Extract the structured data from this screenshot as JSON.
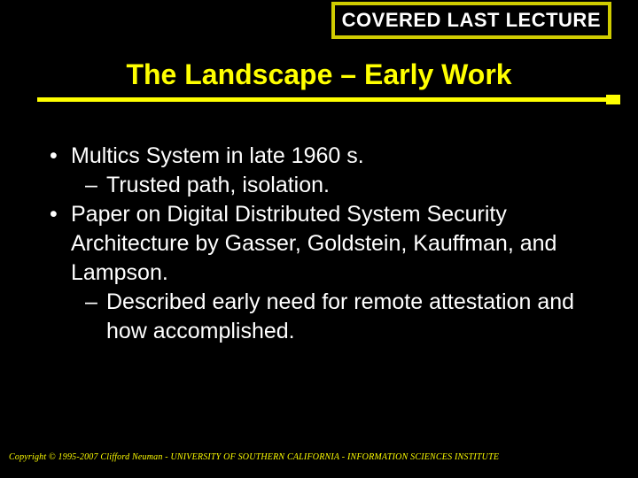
{
  "banner": {
    "text": "COVERED LAST LECTURE"
  },
  "title": "The Landscape – Early Work",
  "bullets": [
    {
      "text": "Multics System in late 1960 s.",
      "subs": [
        {
          "text": "Trusted path, isolation."
        }
      ]
    },
    {
      "text": "Paper on Digital Distributed System Security Architecture by Gasser, Goldstein, Kauffman, and Lampson.",
      "subs": [
        {
          "text": "Described early need for remote attestation and how accomplished."
        }
      ]
    }
  ],
  "footer": "Copyright © 1995-2007 Clifford Neuman - UNIVERSITY OF SOUTHERN CALIFORNIA - INFORMATION SCIENCES INSTITUTE",
  "colors": {
    "background": "#000000",
    "accent": "#ffff00",
    "banner_border": "#d0cc00",
    "text": "#ffffff"
  },
  "typography": {
    "title_fontsize": 32,
    "body_fontsize": 25,
    "footer_fontsize": 10,
    "banner_fontsize": 22
  }
}
